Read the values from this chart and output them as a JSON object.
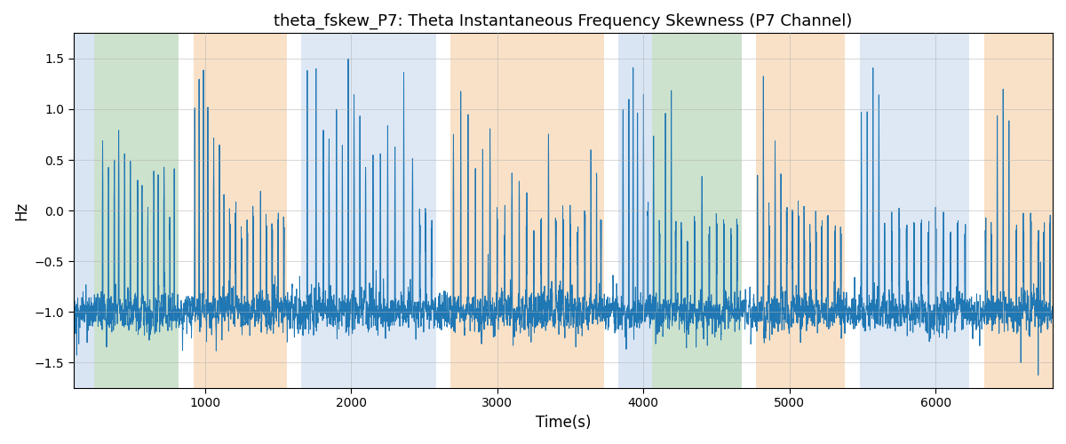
{
  "title": "theta_fskew_P7: Theta Instantaneous Frequency Skewness (P7 Channel)",
  "xlabel": "Time(s)",
  "ylabel": "Hz",
  "ylim": [
    -1.75,
    1.75
  ],
  "xlim": [
    100,
    6800
  ],
  "xticks": [
    1000,
    2000,
    3000,
    4000,
    5000,
    6000
  ],
  "yticks": [
    -1.5,
    -1.0,
    -0.5,
    0.0,
    0.5,
    1.0,
    1.5
  ],
  "line_color": "#1f77b4",
  "line_width": 0.7,
  "title_fontsize": 13,
  "label_fontsize": 12,
  "figsize": [
    12.0,
    5.0
  ],
  "dpi": 100,
  "bands": [
    {
      "xmin": 100,
      "xmax": 240,
      "color": "#aec6e8",
      "alpha": 0.45
    },
    {
      "xmin": 240,
      "xmax": 820,
      "color": "#90c090",
      "alpha": 0.45
    },
    {
      "xmin": 820,
      "xmax": 920,
      "color": "#ffffff",
      "alpha": 0.0
    },
    {
      "xmin": 920,
      "xmax": 1560,
      "color": "#f5c590",
      "alpha": 0.5
    },
    {
      "xmin": 1560,
      "xmax": 1660,
      "color": "#ffffff",
      "alpha": 0.0
    },
    {
      "xmin": 1660,
      "xmax": 2580,
      "color": "#aec6e8",
      "alpha": 0.4
    },
    {
      "xmin": 2580,
      "xmax": 2680,
      "color": "#ffffff",
      "alpha": 0.0
    },
    {
      "xmin": 2680,
      "xmax": 3730,
      "color": "#f5c590",
      "alpha": 0.5
    },
    {
      "xmin": 3730,
      "xmax": 3830,
      "color": "#ffffff",
      "alpha": 0.0
    },
    {
      "xmin": 3830,
      "xmax": 4060,
      "color": "#aec6e8",
      "alpha": 0.45
    },
    {
      "xmin": 4060,
      "xmax": 4670,
      "color": "#90c090",
      "alpha": 0.45
    },
    {
      "xmin": 4670,
      "xmax": 4770,
      "color": "#ffffff",
      "alpha": 0.0
    },
    {
      "xmin": 4770,
      "xmax": 5380,
      "color": "#f5c590",
      "alpha": 0.5
    },
    {
      "xmin": 5380,
      "xmax": 5480,
      "color": "#ffffff",
      "alpha": 0.0
    },
    {
      "xmin": 5480,
      "xmax": 6230,
      "color": "#aec6e8",
      "alpha": 0.4
    },
    {
      "xmin": 6230,
      "xmax": 6330,
      "color": "#ffffff",
      "alpha": 0.0
    },
    {
      "xmin": 6330,
      "xmax": 6800,
      "color": "#f5c590",
      "alpha": 0.5
    }
  ],
  "seed": 42,
  "n_points": 6700
}
